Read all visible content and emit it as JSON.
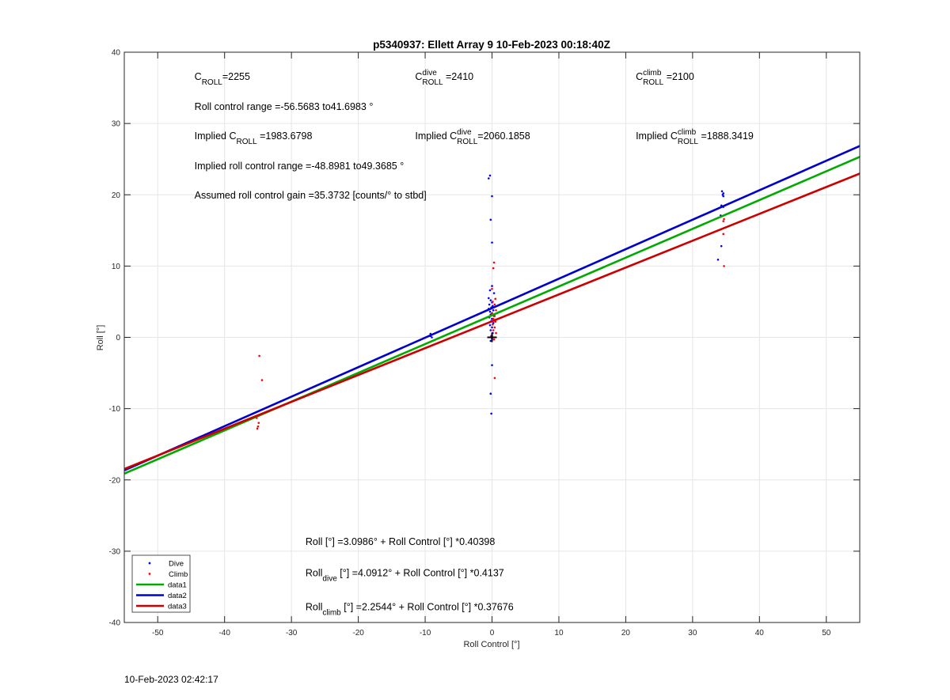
{
  "chart_data": {
    "type": "scatter",
    "title": "p5340937: Ellett Array 9 10-Feb-2023 00:18:40Z",
    "xlabel": "Roll Control [°]",
    "ylabel": "Roll [°]",
    "xlim": [
      -55,
      55
    ],
    "ylim": [
      -40,
      40
    ],
    "xticks": [
      -50,
      -40,
      -30,
      -20,
      -10,
      0,
      10,
      20,
      30,
      40,
      50
    ],
    "yticks": [
      -40,
      -30,
      -20,
      -10,
      0,
      10,
      20,
      30,
      40
    ],
    "grid": true,
    "legend_position": "bottom-left",
    "legend": [
      "Dive",
      "Climb",
      "data1",
      "data2",
      "data3"
    ],
    "colors": {
      "dive": "#0000ff",
      "climb": "#ff0000",
      "data1": "#00aa00",
      "data2": "#0000cc",
      "data3": "#cc0000",
      "marker": "#000000",
      "grid": "#e6e6e6"
    },
    "series": [
      {
        "name": "Dive",
        "kind": "points",
        "points": [
          [
            -9.2,
            0.2
          ],
          [
            -9.2,
            0.5
          ],
          [
            -9.0,
            0.0
          ],
          [
            -0.3,
            22.7
          ],
          [
            -0.5,
            22.3
          ],
          [
            0.0,
            19.8
          ],
          [
            -0.2,
            16.5
          ],
          [
            0.0,
            13.3
          ],
          [
            0.0,
            7.2
          ],
          [
            -0.3,
            6.6
          ],
          [
            0.3,
            6.2
          ],
          [
            -0.5,
            5.5
          ],
          [
            -0.2,
            5.2
          ],
          [
            0.0,
            4.9
          ],
          [
            -0.4,
            4.6
          ],
          [
            0.1,
            4.4
          ],
          [
            -0.1,
            4.2
          ],
          [
            -0.5,
            4.0
          ],
          [
            0.2,
            3.8
          ],
          [
            -0.3,
            3.6
          ],
          [
            0.0,
            3.4
          ],
          [
            -0.2,
            3.2
          ],
          [
            0.3,
            3.0
          ],
          [
            -0.4,
            2.8
          ],
          [
            0.0,
            2.6
          ],
          [
            -0.1,
            2.3
          ],
          [
            0.2,
            2.0
          ],
          [
            -0.3,
            1.7
          ],
          [
            0.0,
            1.4
          ],
          [
            -0.2,
            1.0
          ],
          [
            0.1,
            0.6
          ],
          [
            -0.1,
            0.2
          ],
          [
            0.0,
            -0.2
          ],
          [
            -0.2,
            -0.5
          ],
          [
            0.0,
            -3.9
          ],
          [
            -0.2,
            -7.9
          ],
          [
            -0.1,
            -10.7
          ],
          [
            34.4,
            20.5
          ],
          [
            34.6,
            20.2
          ],
          [
            34.5,
            20.0
          ],
          [
            34.6,
            19.8
          ],
          [
            34.3,
            18.5
          ],
          [
            34.6,
            18.3
          ],
          [
            34.2,
            17.1
          ],
          [
            34.3,
            12.8
          ],
          [
            33.8,
            10.9
          ]
        ]
      },
      {
        "name": "Climb",
        "kind": "points",
        "points": [
          [
            -34.8,
            -2.6
          ],
          [
            -34.4,
            -6.0
          ],
          [
            -34.9,
            -10.9
          ],
          [
            -35.2,
            -11.3
          ],
          [
            -34.9,
            -12.0
          ],
          [
            -35.0,
            -12.5
          ],
          [
            -35.1,
            -12.8
          ],
          [
            0.3,
            10.5
          ],
          [
            0.2,
            9.7
          ],
          [
            0.0,
            6.8
          ],
          [
            0.5,
            5.4
          ],
          [
            0.1,
            5.0
          ],
          [
            0.4,
            4.6
          ],
          [
            0.2,
            4.2
          ],
          [
            0.6,
            3.8
          ],
          [
            0.0,
            3.4
          ],
          [
            0.4,
            3.0
          ],
          [
            0.2,
            2.6
          ],
          [
            0.5,
            2.2
          ],
          [
            0.1,
            1.8
          ],
          [
            0.4,
            1.4
          ],
          [
            0.2,
            1.0
          ],
          [
            0.6,
            0.6
          ],
          [
            0.0,
            0.2
          ],
          [
            0.3,
            -0.3
          ],
          [
            0.4,
            -5.7
          ],
          [
            34.7,
            16.6
          ],
          [
            34.6,
            16.3
          ],
          [
            34.6,
            14.5
          ],
          [
            34.7,
            10.0
          ]
        ]
      },
      {
        "name": "data1",
        "kind": "line",
        "intercept": 3.0986,
        "slope": 0.40398
      },
      {
        "name": "data2",
        "kind": "line",
        "intercept": 4.0912,
        "slope": 0.4137
      },
      {
        "name": "data3",
        "kind": "line",
        "intercept": 2.2544,
        "slope": 0.37676
      }
    ],
    "marker_cross": [
      0,
      0
    ],
    "annotations": [
      {
        "main": "C",
        "sub": "ROLL",
        "sup": "",
        "rest": "=2255",
        "at": [
          -44.5,
          36.1
        ]
      },
      {
        "main": "C",
        "sub": "ROLL",
        "sup": "dive",
        "rest": " =2410",
        "at": [
          -11.5,
          36.1
        ]
      },
      {
        "main": "C",
        "sub": "ROLL",
        "sup": "climb",
        "rest": " =2100",
        "at": [
          21.5,
          36.1
        ]
      },
      {
        "main": "Roll control range =-56.5683 to41.6983 °",
        "sub": "",
        "sup": "",
        "rest": "",
        "at": [
          -44.5,
          31.9
        ]
      },
      {
        "main": "Implied C",
        "sub": "ROLL",
        "sup": "",
        "rest": " =1983.6798",
        "at": [
          -44.5,
          27.8
        ]
      },
      {
        "main": "Implied C",
        "sub": "ROLL",
        "sup": "dive",
        "rest": "=2060.1858",
        "at": [
          -11.5,
          27.8
        ]
      },
      {
        "main": "Implied C",
        "sub": "ROLL",
        "sup": "climb",
        "rest": " =1888.3419",
        "at": [
          21.5,
          27.8
        ]
      },
      {
        "main": "Implied roll control range =-48.8981 to49.3685 °",
        "sub": "",
        "sup": "",
        "rest": "",
        "at": [
          -44.5,
          23.6
        ]
      },
      {
        "main": "Assumed roll control gain =35.3732 [counts/° to stbd]",
        "sub": "",
        "sup": "",
        "rest": "",
        "at": [
          -44.5,
          19.5
        ]
      },
      {
        "main": "Roll [°] =3.0986° + Roll Control [°] *0.40398",
        "sub": "",
        "sup": "",
        "rest": "",
        "at": [
          -27.9,
          -29.1
        ]
      },
      {
        "main": "Roll",
        "sub": "dive",
        "sup": "",
        "rest": " [°] =4.0912° + Roll Control [°] *0.4137",
        "at": [
          -27.9,
          -33.5
        ]
      },
      {
        "main": "Roll",
        "sub": "climb",
        "sup": "",
        "rest": " [°] =2.2544° + Roll Control [°] *0.37676",
        "at": [
          -27.9,
          -38.3
        ]
      }
    ]
  },
  "timestamp": "10-Feb-2023 02:42:17"
}
